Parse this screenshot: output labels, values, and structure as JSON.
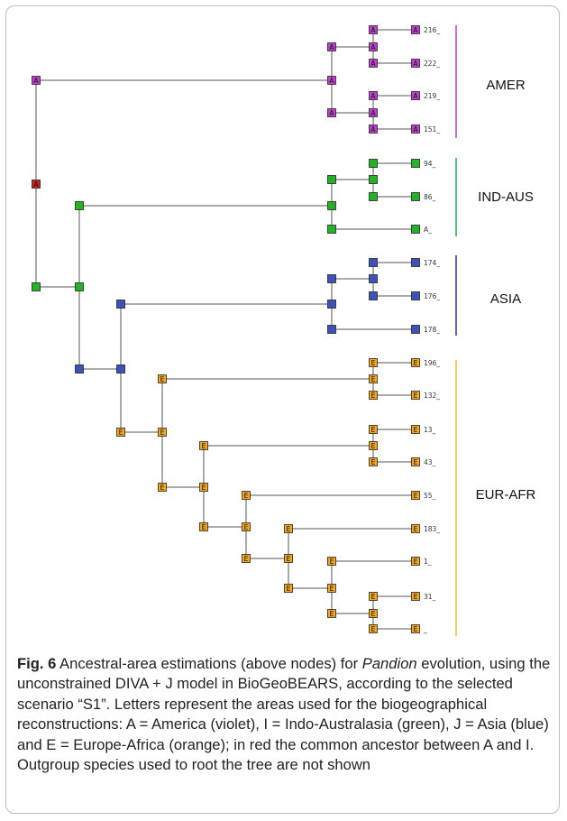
{
  "tree": {
    "node_states": {
      "root": "A",
      "amer": "A",
      "indaus_sister": "I",
      "indaus": "I",
      "asia": "J",
      "eur": "E"
    },
    "tips": [
      "216_",
      "222_",
      "219_",
      "151_",
      "94_",
      "86_",
      "A_",
      "174_",
      "176_",
      "178_",
      "196_",
      "132_",
      "13_",
      "43_",
      "55_",
      "183_",
      "1_",
      "31_",
      "_"
    ],
    "clades": [
      {
        "label": "AMER",
        "color": "#c54bc5"
      },
      {
        "label": "IND-AUS",
        "color": "#2bb262"
      },
      {
        "label": "ASIA",
        "color": "#3a3a9a"
      },
      {
        "label": "EUR-AFR",
        "color": "#f1c232"
      }
    ],
    "area_colors": {
      "A": "#bf3fd0",
      "I": "#24b324",
      "J": "#3c52b8",
      "E": "#f5a623",
      "root": "#c8201e"
    }
  },
  "caption": {
    "label": "Fig. 6",
    "text_before_italic": " Ancestral-area estimations (above nodes) for ",
    "italic": "Pandion",
    "text_after_italic": " evolution, using the unconstrained DIVA + J model in BioGeoBEARS, according to the selected scenario “S1”. Letters represent the areas used for the biogeographical reconstructions: A = America (violet), I = Indo-Australasia (green), J = Asia (blue) and E = Europe-Africa (orange); in red the common ancestor between A and I. Outgroup species used to root the tree are not shown"
  }
}
